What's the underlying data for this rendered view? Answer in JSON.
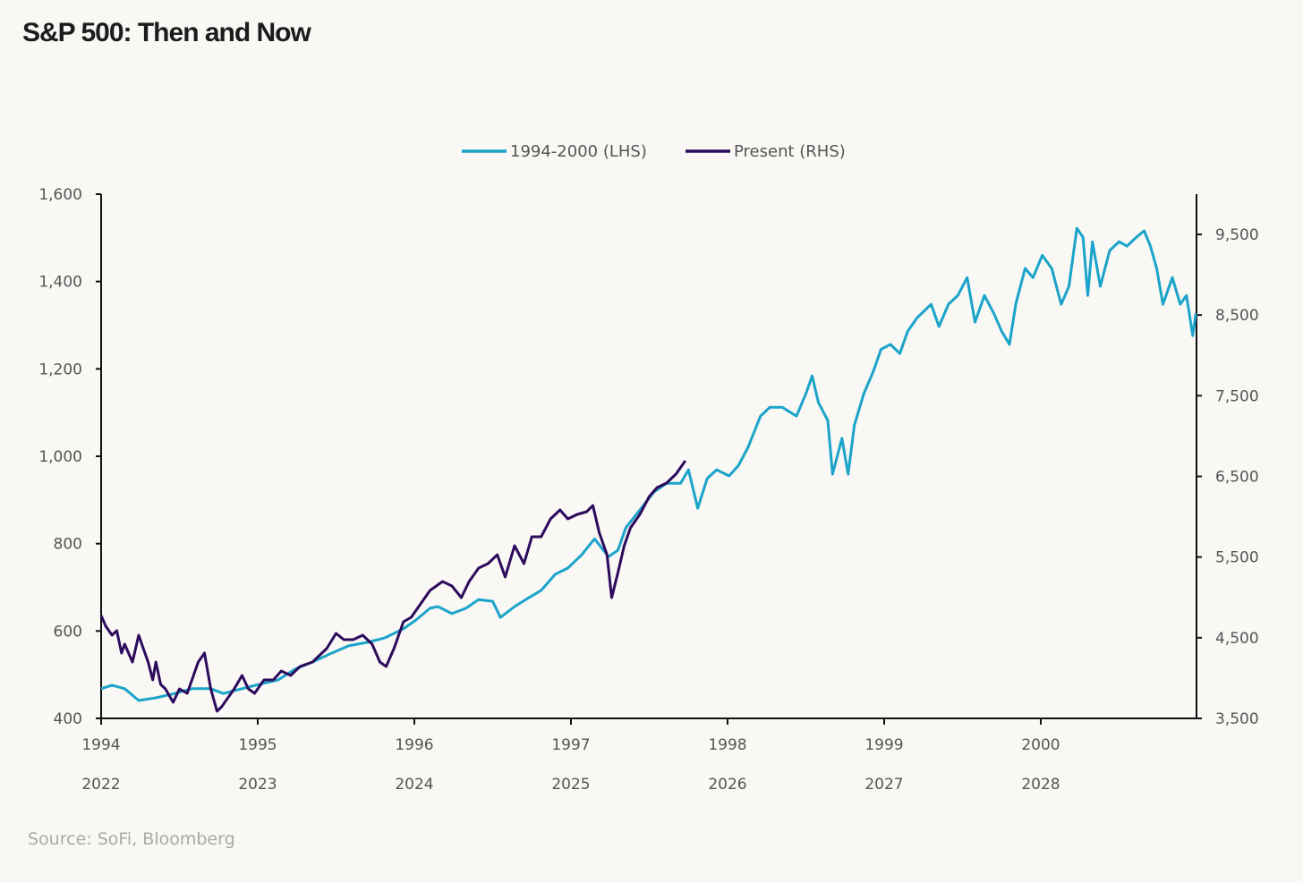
{
  "chart_data": {
    "type": "line",
    "title": "S&P 500: Then and Now",
    "source": "Source: SoFi, Bloomberg",
    "legend_position": "top-center",
    "grid": false,
    "left_axis": {
      "ylim": [
        400,
        1600
      ],
      "ticks": [
        400,
        600,
        800,
        1000,
        1200,
        1400,
        1600
      ],
      "tick_labels": [
        "400",
        "600",
        "800",
        "1,000",
        "1,200",
        "1,400",
        "1,600"
      ]
    },
    "right_axis": {
      "ylim": [
        3500,
        9500
      ],
      "ticks": [
        3500,
        4500,
        5500,
        6500,
        7500,
        8500,
        9500
      ],
      "tick_labels": [
        "3,500",
        "4,500",
        "5,500",
        "6,500",
        "7,500",
        "8,500",
        "9,500"
      ]
    },
    "x_axis": {
      "xlim": [
        1994,
        2001
      ],
      "ticks": [
        1994,
        1995,
        1996,
        1997,
        1998,
        1999,
        2000
      ],
      "tick_labels_top": [
        "1994",
        "1995",
        "1996",
        "1997",
        "1998",
        "1999",
        "2000"
      ],
      "tick_labels_bottom": [
        "2022",
        "2023",
        "2024",
        "2025",
        "2026",
        "2027",
        "2028"
      ]
    },
    "colors": {
      "lhs": "#1ba3c9",
      "rhs": "#2d0b5c",
      "axis": "#111111"
    },
    "series": [
      {
        "name": "1994-2000 (LHS)",
        "axis": "left",
        "x_offset": 0,
        "points": [
          [
            1994.0,
            468
          ],
          [
            1994.07,
            476
          ],
          [
            1994.15,
            468
          ],
          [
            1994.24,
            441
          ],
          [
            1994.35,
            447
          ],
          [
            1994.47,
            457
          ],
          [
            1994.58,
            468
          ],
          [
            1994.7,
            468
          ],
          [
            1994.78,
            457
          ],
          [
            1994.9,
            468
          ],
          [
            1995.01,
            478
          ],
          [
            1995.13,
            488
          ],
          [
            1995.24,
            513
          ],
          [
            1995.35,
            529
          ],
          [
            1995.47,
            549
          ],
          [
            1995.58,
            566
          ],
          [
            1995.7,
            574
          ],
          [
            1995.81,
            584
          ],
          [
            1995.93,
            605
          ],
          [
            1996.01,
            625
          ],
          [
            1996.1,
            652
          ],
          [
            1996.15,
            656
          ],
          [
            1996.24,
            640
          ],
          [
            1996.33,
            652
          ],
          [
            1996.41,
            672
          ],
          [
            1996.5,
            668
          ],
          [
            1996.55,
            631
          ],
          [
            1996.64,
            656
          ],
          [
            1996.73,
            676
          ],
          [
            1996.81,
            693
          ],
          [
            1996.9,
            730
          ],
          [
            1996.98,
            744
          ],
          [
            1997.07,
            775
          ],
          [
            1997.15,
            811
          ],
          [
            1997.24,
            770
          ],
          [
            1997.3,
            785
          ],
          [
            1997.35,
            836
          ],
          [
            1997.44,
            877
          ],
          [
            1997.53,
            918
          ],
          [
            1997.61,
            938
          ],
          [
            1997.7,
            938
          ],
          [
            1997.75,
            969
          ],
          [
            1997.81,
            881
          ],
          [
            1997.87,
            949
          ],
          [
            1997.93,
            969
          ],
          [
            1998.01,
            955
          ],
          [
            1998.07,
            979
          ],
          [
            1998.13,
            1020
          ],
          [
            1998.21,
            1092
          ],
          [
            1998.27,
            1112
          ],
          [
            1998.35,
            1112
          ],
          [
            1998.44,
            1092
          ],
          [
            1998.5,
            1143
          ],
          [
            1998.54,
            1184
          ],
          [
            1998.58,
            1123
          ],
          [
            1998.64,
            1082
          ],
          [
            1998.67,
            959
          ],
          [
            1998.73,
            1041
          ],
          [
            1998.77,
            959
          ],
          [
            1998.81,
            1071
          ],
          [
            1998.87,
            1143
          ],
          [
            1998.93,
            1194
          ],
          [
            1998.98,
            1245
          ],
          [
            1999.04,
            1256
          ],
          [
            1999.1,
            1235
          ],
          [
            1999.15,
            1286
          ],
          [
            1999.21,
            1317
          ],
          [
            1999.3,
            1348
          ],
          [
            1999.35,
            1297
          ],
          [
            1999.41,
            1348
          ],
          [
            1999.47,
            1368
          ],
          [
            1999.53,
            1409
          ],
          [
            1999.58,
            1307
          ],
          [
            1999.64,
            1368
          ],
          [
            1999.7,
            1327
          ],
          [
            1999.75,
            1286
          ],
          [
            1999.8,
            1256
          ],
          [
            1999.84,
            1348
          ],
          [
            1999.9,
            1430
          ],
          [
            1999.95,
            1409
          ],
          [
            2000.01,
            1460
          ],
          [
            2000.07,
            1430
          ],
          [
            2000.13,
            1348
          ],
          [
            2000.18,
            1389
          ],
          [
            2000.23,
            1522
          ],
          [
            2000.27,
            1501
          ],
          [
            2000.3,
            1368
          ],
          [
            2000.33,
            1491
          ],
          [
            2000.38,
            1389
          ],
          [
            2000.44,
            1471
          ],
          [
            2000.5,
            1491
          ],
          [
            2000.55,
            1481
          ],
          [
            2000.61,
            1501
          ],
          [
            2000.66,
            1516
          ],
          [
            2000.7,
            1481
          ],
          [
            2000.74,
            1430
          ],
          [
            2000.78,
            1348
          ],
          [
            2000.84,
            1409
          ],
          [
            2000.89,
            1348
          ],
          [
            2000.93,
            1368
          ],
          [
            2000.97,
            1276
          ],
          [
            2000.99,
            1327
          ]
        ]
      },
      {
        "name": "Present (RHS)",
        "axis": "right",
        "x_offset": 28,
        "points": [
          [
            2022.0,
            4775
          ],
          [
            2022.03,
            4642
          ],
          [
            2022.07,
            4531
          ],
          [
            2022.1,
            4587
          ],
          [
            2022.13,
            4310
          ],
          [
            2022.15,
            4420
          ],
          [
            2022.2,
            4199
          ],
          [
            2022.24,
            4531
          ],
          [
            2022.27,
            4365
          ],
          [
            2022.3,
            4199
          ],
          [
            2022.33,
            3977
          ],
          [
            2022.35,
            4199
          ],
          [
            2022.38,
            3921
          ],
          [
            2022.41,
            3866
          ],
          [
            2022.46,
            3700
          ],
          [
            2022.5,
            3866
          ],
          [
            2022.55,
            3811
          ],
          [
            2022.58,
            3977
          ],
          [
            2022.62,
            4199
          ],
          [
            2022.66,
            4310
          ],
          [
            2022.7,
            3866
          ],
          [
            2022.74,
            3589
          ],
          [
            2022.77,
            3644
          ],
          [
            2022.81,
            3755
          ],
          [
            2022.85,
            3866
          ],
          [
            2022.9,
            4032
          ],
          [
            2022.94,
            3866
          ],
          [
            2022.98,
            3811
          ],
          [
            2023.04,
            3977
          ],
          [
            2023.1,
            3977
          ],
          [
            2023.15,
            4088
          ],
          [
            2023.21,
            4032
          ],
          [
            2023.27,
            4143
          ],
          [
            2023.35,
            4199
          ],
          [
            2023.44,
            4365
          ],
          [
            2023.5,
            4554
          ],
          [
            2023.55,
            4476
          ],
          [
            2023.61,
            4476
          ],
          [
            2023.67,
            4531
          ],
          [
            2023.73,
            4420
          ],
          [
            2023.78,
            4199
          ],
          [
            2023.82,
            4143
          ],
          [
            2023.87,
            4365
          ],
          [
            2023.93,
            4698
          ],
          [
            2023.98,
            4753
          ],
          [
            2024.04,
            4920
          ],
          [
            2024.1,
            5086
          ],
          [
            2024.18,
            5197
          ],
          [
            2024.24,
            5141
          ],
          [
            2024.3,
            4997
          ],
          [
            2024.35,
            5197
          ],
          [
            2024.41,
            5363
          ],
          [
            2024.47,
            5419
          ],
          [
            2024.53,
            5529
          ],
          [
            2024.58,
            5252
          ],
          [
            2024.64,
            5640
          ],
          [
            2024.7,
            5419
          ],
          [
            2024.75,
            5751
          ],
          [
            2024.81,
            5751
          ],
          [
            2024.87,
            5973
          ],
          [
            2024.93,
            6084
          ],
          [
            2024.98,
            5973
          ],
          [
            2025.04,
            6029
          ],
          [
            2025.1,
            6062
          ],
          [
            2025.14,
            6139
          ],
          [
            2025.18,
            5807
          ],
          [
            2025.23,
            5529
          ],
          [
            2025.26,
            4997
          ],
          [
            2025.3,
            5308
          ],
          [
            2025.34,
            5640
          ],
          [
            2025.38,
            5862
          ],
          [
            2025.44,
            6029
          ],
          [
            2025.5,
            6250
          ],
          [
            2025.55,
            6361
          ],
          [
            2025.61,
            6417
          ],
          [
            2025.67,
            6528
          ],
          [
            2025.73,
            6694
          ]
        ]
      }
    ]
  }
}
